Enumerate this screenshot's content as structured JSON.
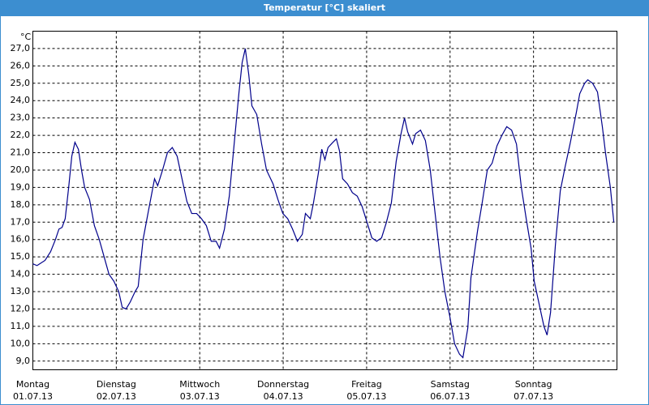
{
  "chart_data": {
    "type": "line",
    "title": "Temperatur [°C] skaliert",
    "y_unit": "°C",
    "x": [
      0,
      1.2,
      3.5,
      5.1,
      6.5,
      7.5,
      8.4,
      9.3,
      10.3,
      11.2,
      12.1,
      13.1,
      14,
      14.9,
      16.3,
      17.7,
      19.1,
      20.5,
      21.9,
      23.3,
      24.7,
      25.7,
      26.8,
      28,
      29.4,
      30.3,
      31.7,
      33.1,
      35,
      35.9,
      37.3,
      38.7,
      40.1,
      41.5,
      42.9,
      44.3,
      45.7,
      47.1,
      48.5,
      49.9,
      51.3,
      52.7,
      53.7,
      55.1,
      56.5,
      57.9,
      59.3,
      60.2,
      61.1,
      62.1,
      63,
      64.4,
      65.8,
      67.2,
      69.1,
      70.5,
      71.9,
      73.3,
      74.7,
      76.1,
      77.5,
      78.4,
      79.8,
      80.7,
      82.1,
      83.1,
      84,
      84.9,
      86.3,
      87.3,
      88.2,
      89.1,
      90.5,
      91.9,
      93.3,
      94.7,
      96.1,
      97.5,
      98.9,
      100.3,
      101.7,
      103.1,
      104.5,
      105.9,
      106.9,
      107.8,
      109.2,
      110.1,
      111.5,
      112.9,
      114.3,
      115.7,
      117.1,
      118.5,
      119.9,
      121.3,
      122.7,
      123.7,
      125.1,
      126,
      127.9,
      129.3,
      130.7,
      132.1,
      133.5,
      134.9,
      136.3,
      137.7,
      139.1,
      140.5,
      141.9,
      143.3,
      144.2,
      145.6,
      147,
      147.9,
      148.9,
      150.3,
      151.7,
      153.1,
      154.5,
      156.3,
      157.3,
      158.7,
      159.6,
      161,
      162.4,
      163.8,
      164.7,
      166.1,
      167.1
    ],
    "series": [
      {
        "color": "#00008b",
        "values": [
          14.6,
          14.5,
          14.8,
          15.3,
          16.0,
          16.6,
          16.7,
          17.2,
          19.0,
          20.8,
          21.6,
          21.2,
          20.0,
          19.0,
          18.3,
          16.8,
          16.0,
          15.0,
          14.0,
          13.6,
          13.0,
          12.1,
          12.0,
          12.4,
          13.0,
          13.3,
          16.0,
          17.5,
          19.5,
          19.1,
          20.0,
          21.0,
          21.3,
          20.8,
          19.5,
          18.2,
          17.5,
          17.5,
          17.2,
          16.8,
          15.9,
          15.9,
          15.5,
          16.6,
          18.5,
          21.5,
          24.5,
          26.2,
          27.0,
          25.5,
          23.7,
          23.2,
          21.5,
          20.0,
          19.2,
          18.3,
          17.5,
          17.2,
          16.6,
          15.9,
          16.3,
          17.5,
          17.2,
          18.1,
          19.8,
          21.2,
          20.6,
          21.3,
          21.6,
          21.8,
          21.1,
          19.5,
          19.2,
          18.7,
          18.5,
          17.9,
          17.0,
          16.1,
          15.9,
          16.1,
          17.0,
          18.1,
          20.5,
          22.1,
          23.0,
          22.2,
          21.5,
          22.1,
          22.3,
          21.7,
          20.0,
          17.5,
          15.0,
          13.0,
          11.6,
          10.0,
          9.4,
          9.2,
          10.9,
          13.8,
          16.5,
          18.2,
          20.0,
          20.4,
          21.4,
          22.0,
          22.5,
          22.3,
          21.5,
          19.0,
          17.2,
          15.5,
          13.6,
          12.3,
          11.0,
          10.5,
          11.8,
          15.7,
          18.8,
          20.2,
          21.5,
          23.3,
          24.4,
          25.0,
          25.2,
          25.0,
          24.5,
          22.5,
          21.0,
          19.0,
          17.0
        ]
      }
    ],
    "xlim": [
      0,
      168
    ],
    "xticks": [
      {
        "value": 0,
        "label": "Montag",
        "date": "01.07.13"
      },
      {
        "value": 24,
        "label": "Dienstag",
        "date": "02.07.13"
      },
      {
        "value": 48,
        "label": "Mittwoch",
        "date": "03.07.13"
      },
      {
        "value": 72,
        "label": "Donnerstag",
        "date": "04.07.13"
      },
      {
        "value": 96,
        "label": "Freitag",
        "date": "05.07.13"
      },
      {
        "value": 120,
        "label": "Samstag",
        "date": "06.07.13"
      },
      {
        "value": 144,
        "label": "Sonntag",
        "date": "07.07.13"
      }
    ],
    "ylim": [
      8.5,
      28
    ],
    "yticks": [
      {
        "value": 9,
        "label": "9,0"
      },
      {
        "value": 10,
        "label": "10,0"
      },
      {
        "value": 11,
        "label": "11,0"
      },
      {
        "value": 12,
        "label": "12,0"
      },
      {
        "value": 13,
        "label": "13,0"
      },
      {
        "value": 14,
        "label": "14,0"
      },
      {
        "value": 15,
        "label": "15,0"
      },
      {
        "value": 16,
        "label": "16,0"
      },
      {
        "value": 17,
        "label": "17,0"
      },
      {
        "value": 18,
        "label": "18,0"
      },
      {
        "value": 19,
        "label": "19,0"
      },
      {
        "value": 20,
        "label": "20,0"
      },
      {
        "value": 21,
        "label": "21,0"
      },
      {
        "value": 22,
        "label": "22,0"
      },
      {
        "value": 23,
        "label": "23,0"
      },
      {
        "value": 24,
        "label": "24,0"
      },
      {
        "value": 25,
        "label": "25,0"
      },
      {
        "value": 26,
        "label": "26,0"
      },
      {
        "value": 27,
        "label": "27,0"
      }
    ],
    "grid": true
  }
}
